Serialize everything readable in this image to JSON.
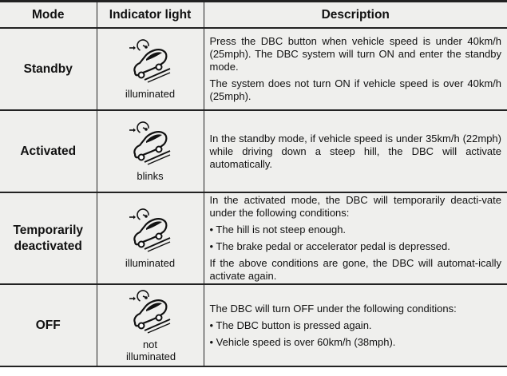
{
  "headers": {
    "mode": "Mode",
    "indicator": "Indicator light",
    "description": "Description"
  },
  "icon": "dbc-car-on-slope-icon",
  "rows": [
    {
      "mode": "Standby",
      "indicator": "illuminated",
      "paragraphs": [
        "Press the DBC button when vehicle speed is under 40km/h (25mph). The DBC system will turn ON and enter the standby mode.",
        "The system does not turn ON if vehicle speed is over 40km/h (25mph)."
      ]
    },
    {
      "mode": "Activated",
      "indicator": "blinks",
      "paragraphs": [
        "In the standby mode, if vehicle speed is under 35km/h (22mph) while driving down a steep hill, the DBC will activate automatically."
      ]
    },
    {
      "mode": "Temporarily deactivated",
      "indicator": "illuminated",
      "paragraphs": [
        "In the activated mode, the DBC will temporarily deacti-vate under the following conditions:",
        "• The hill is not steep enough.",
        "• The brake pedal or accelerator pedal is depressed.",
        "If the above conditions are gone, the DBC will automat-ically activate again."
      ]
    },
    {
      "mode": "OFF",
      "indicator": "not illuminated",
      "paragraphs": [
        "The DBC will turn OFF under the following conditions:",
        "• The DBC button is pressed again.",
        "• Vehicle speed is over 60km/h (38mph)."
      ]
    }
  ]
}
